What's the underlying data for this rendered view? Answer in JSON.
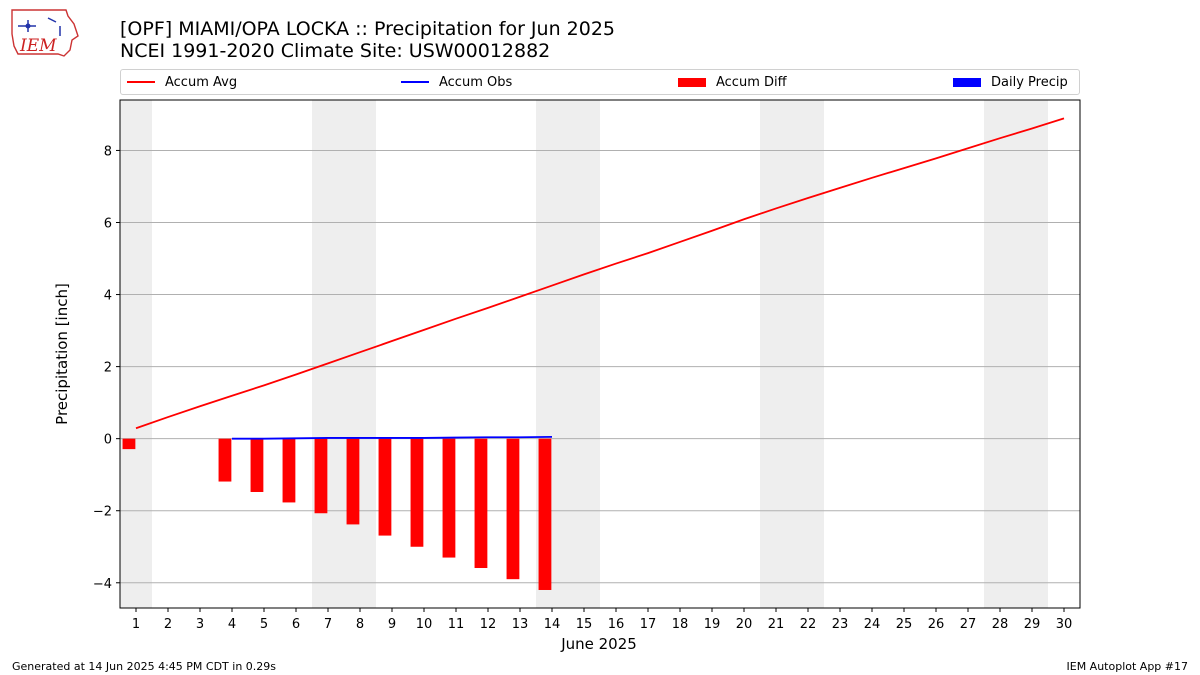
{
  "header": {
    "title_line1": "[OPF] MIAMI/OPA LOCKA :: Precipitation for Jun 2025",
    "title_line2": "NCEI 1991-2020 Climate Site: USW00012882",
    "logo_text": "IEM"
  },
  "footer": {
    "left": "Generated at 14 Jun 2025 4:45 PM CDT in 0.29s",
    "right": "IEM Autoplot App #17"
  },
  "colors": {
    "accum_avg": "#ff0000",
    "accum_obs": "#0000ff",
    "accum_diff": "#ff0000",
    "daily_precip": "#0000ff",
    "weekend_shade": "#eeeeee",
    "grid": "#b0b0b0"
  },
  "chart_data": {
    "type": "bar",
    "xlabel": "June 2025",
    "ylabel": "Precipitation [inch]",
    "xlim": [
      0.5,
      30.5
    ],
    "ylim": [
      -4.7,
      9.4
    ],
    "yticks": [
      -4,
      -2,
      0,
      2,
      4,
      6,
      8
    ],
    "grid": "horizontal",
    "legend_position": "top",
    "weekend_shading": [
      [
        0.5,
        1.5
      ],
      [
        6.5,
        8.5
      ],
      [
        13.5,
        15.5
      ],
      [
        20.5,
        22.5
      ],
      [
        27.5,
        29.5
      ]
    ],
    "days": [
      1,
      2,
      3,
      4,
      5,
      6,
      7,
      8,
      9,
      10,
      11,
      12,
      13,
      14,
      15,
      16,
      17,
      18,
      19,
      20,
      21,
      22,
      23,
      24,
      25,
      26,
      27,
      28,
      29,
      30
    ],
    "series": [
      {
        "name": "Accum Avg",
        "kind": "line",
        "x": [
          1,
          2,
          3,
          4,
          5,
          6,
          7,
          8,
          9,
          10,
          11,
          12,
          13,
          14,
          15,
          16,
          17,
          18,
          19,
          20,
          21,
          22,
          23,
          24,
          25,
          26,
          27,
          28,
          29,
          30
        ],
        "values": [
          0.29,
          0.6,
          0.9,
          1.19,
          1.48,
          1.78,
          2.09,
          2.4,
          2.71,
          3.02,
          3.33,
          3.63,
          3.94,
          4.25,
          4.56,
          4.86,
          5.15,
          5.46,
          5.77,
          6.09,
          6.39,
          6.68,
          6.96,
          7.24,
          7.51,
          7.78,
          8.06,
          8.34,
          8.61,
          8.89
        ]
      },
      {
        "name": "Accum Obs",
        "kind": "line",
        "x": [
          4,
          5,
          6,
          7,
          8,
          9,
          10,
          11,
          12,
          13,
          14
        ],
        "values": [
          0.0,
          0.0,
          0.01,
          0.02,
          0.02,
          0.02,
          0.02,
          0.03,
          0.04,
          0.04,
          0.05
        ]
      },
      {
        "name": "Accum Diff",
        "kind": "bar",
        "x": [
          1,
          4,
          5,
          6,
          7,
          8,
          9,
          10,
          11,
          12,
          13,
          14
        ],
        "values": [
          -0.29,
          -1.19,
          -1.48,
          -1.77,
          -2.07,
          -2.38,
          -2.69,
          -3.0,
          -3.3,
          -3.59,
          -3.9,
          -4.2
        ]
      },
      {
        "name": "Daily Precip",
        "kind": "bar",
        "x": [],
        "values": []
      }
    ]
  }
}
